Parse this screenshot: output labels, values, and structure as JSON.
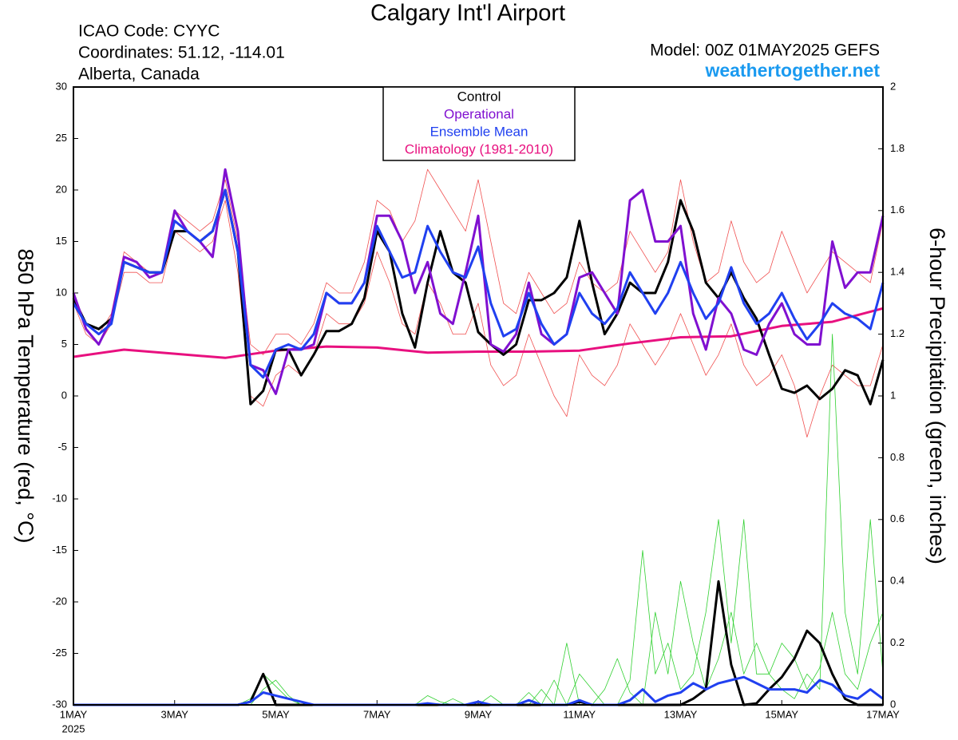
{
  "chart_data": {
    "type": "line",
    "title": "Calgary Int'l Airport",
    "info": [
      "ICAO Code: CYYC",
      "Coordinates: 51.12, -114.01",
      "Alberta, Canada"
    ],
    "model": "Model: 00Z 01MAY2025 GEFS",
    "source": "weathertogether.net",
    "ylabel": "850 hPa Temperature (red, °C)",
    "y2label": "6-hour Precipitation (green, inches)",
    "year": "2025",
    "xlim": [
      0,
      16
    ],
    "xticks": [
      {
        "value": 0,
        "label": "1MAY"
      },
      {
        "value": 2,
        "label": "3MAY"
      },
      {
        "value": 4,
        "label": "5MAY"
      },
      {
        "value": 6,
        "label": "7MAY"
      },
      {
        "value": 8,
        "label": "9MAY"
      },
      {
        "value": 10,
        "label": "11MAY"
      },
      {
        "value": 12,
        "label": "13MAY"
      },
      {
        "value": 14,
        "label": "15MAY"
      },
      {
        "value": 16,
        "label": "17MAY"
      }
    ],
    "ylim": [
      -30,
      30
    ],
    "yticks": [
      -30,
      -25,
      -20,
      -15,
      -10,
      -5,
      0,
      5,
      10,
      15,
      20,
      25,
      30
    ],
    "y2lim": [
      0,
      2
    ],
    "y2ticks": [
      0,
      0.2,
      0.4,
      0.6,
      0.8,
      1,
      1.2,
      1.4,
      1.6,
      1.8,
      2
    ],
    "x": [
      0,
      0.25,
      0.5,
      0.75,
      1,
      1.25,
      1.5,
      1.75,
      2,
      2.25,
      2.5,
      2.75,
      3,
      3.25,
      3.5,
      3.75,
      4,
      4.25,
      4.5,
      4.75,
      5,
      5.25,
      5.5,
      5.75,
      6,
      6.25,
      6.5,
      6.75,
      7,
      7.25,
      7.5,
      7.75,
      8,
      8.25,
      8.5,
      8.75,
      9,
      9.25,
      9.5,
      9.75,
      10,
      10.25,
      10.5,
      10.75,
      11,
      11.25,
      11.5,
      11.75,
      12,
      12.25,
      12.5,
      12.75,
      13,
      13.25,
      13.5,
      13.75,
      14,
      14.25,
      14.5,
      14.75,
      15,
      15.25,
      15.5,
      15.75,
      16
    ],
    "series": [
      {
        "color": "#f05050",
        "values": [
          9,
          7,
          6,
          8,
          14,
          13,
          12,
          12,
          18,
          17,
          16,
          17,
          21,
          15,
          5,
          4,
          6,
          6,
          5,
          7,
          11,
          10,
          10,
          13,
          19,
          18,
          15,
          17,
          22,
          20,
          18,
          16,
          21,
          15,
          9,
          8,
          12,
          10,
          8,
          9,
          13,
          11,
          10,
          11,
          16,
          14,
          12,
          14,
          21,
          15,
          11,
          12,
          17,
          13,
          11,
          12,
          16,
          13,
          10,
          12,
          14,
          13,
          12,
          11,
          17
        ]
      },
      {
        "color": "#f05050",
        "values": [
          9,
          6,
          5,
          7,
          12,
          12,
          11,
          11,
          16,
          15,
          14,
          15,
          19,
          12,
          0,
          -1,
          2,
          3,
          2,
          4,
          8,
          7,
          7,
          9,
          14,
          11,
          7,
          6,
          11,
          9,
          6,
          6,
          9,
          3,
          1,
          2,
          6,
          3,
          0,
          -2,
          4,
          2,
          1,
          3,
          7,
          5,
          3,
          5,
          8,
          5,
          2,
          4,
          7,
          3,
          1,
          2,
          4,
          1,
          -4,
          0,
          3,
          2,
          1,
          1,
          5
        ]
      },
      {
        "color": "#30d030",
        "axis": "y2",
        "values": [
          0,
          0,
          0,
          0,
          0,
          0,
          0,
          0,
          0,
          0,
          0,
          0,
          0,
          0,
          0.02,
          0.1,
          0.06,
          0.02,
          0,
          0,
          0,
          0,
          0,
          0,
          0,
          0,
          0,
          0,
          0.03,
          0.01,
          0,
          0,
          0,
          0,
          0,
          0,
          0.04,
          0,
          0.08,
          0,
          0.1,
          0.05,
          0,
          0,
          0.08,
          0.5,
          0.1,
          0.2,
          0.05,
          0.1,
          0.3,
          0.6,
          0.2,
          0.6,
          0.1,
          0.1,
          0.05,
          0.02,
          0.1,
          0.05,
          1.2,
          0.3,
          0.1,
          0.6,
          0.1
        ]
      },
      {
        "color": "#30d030",
        "axis": "y2",
        "values": [
          0,
          0,
          0,
          0,
          0,
          0,
          0,
          0,
          0,
          0,
          0,
          0,
          0,
          0,
          0,
          0.05,
          0.08,
          0.03,
          0,
          0,
          0,
          0,
          0,
          0,
          0,
          0,
          0,
          0,
          0,
          0,
          0.02,
          0,
          0,
          0.03,
          0,
          0,
          0,
          0.05,
          0,
          0.2,
          0,
          0,
          0.05,
          0.15,
          0.04,
          0,
          0.3,
          0.1,
          0.4,
          0.2,
          0.05,
          0.15,
          0.3,
          0.1,
          0.2,
          0.1,
          0.2,
          0.15,
          0.05,
          0.12,
          0.3,
          0.1,
          0.05,
          0.2,
          0.3
        ]
      },
      {
        "name": "Climatology (1981-2010)",
        "color": "#e8107f",
        "x": [
          0,
          1,
          2,
          3,
          4,
          5,
          6,
          7,
          8,
          9,
          10,
          11,
          12,
          13,
          14,
          15,
          16
        ],
        "values": [
          3.8,
          4.5,
          4.1,
          3.7,
          4.4,
          4.8,
          4.7,
          4.2,
          4.3,
          4.3,
          4.4,
          5.1,
          5.7,
          5.8,
          6.8,
          7.2,
          8.5
        ]
      },
      {
        "name": "Control",
        "color": "#000000",
        "values": [
          9.5,
          7,
          6.5,
          7.5,
          13,
          12.5,
          12,
          12,
          16,
          16,
          15,
          16,
          20,
          14,
          -0.8,
          0.5,
          4.5,
          4.5,
          2,
          4,
          6.3,
          6.3,
          7,
          9.5,
          16,
          14,
          8,
          4.7,
          11,
          16,
          12,
          11,
          6.2,
          5,
          4,
          5,
          9.3,
          9.3,
          10,
          11.5,
          17,
          11,
          6,
          8,
          11,
          10,
          10,
          13,
          19,
          16,
          11,
          9.5,
          12,
          9.5,
          7.5,
          4,
          0.7,
          0.3,
          1,
          -0.3,
          0.7,
          2.5,
          2,
          -0.8,
          3.5
        ]
      },
      {
        "name": "Operational",
        "color": "#8010d0",
        "values": [
          10,
          6.5,
          5,
          7.5,
          13.5,
          13,
          11.5,
          12,
          18,
          16,
          15,
          13.5,
          22,
          16,
          3,
          2.5,
          0.2,
          4.5,
          4.5,
          5,
          10,
          9,
          9,
          11,
          17.5,
          17.5,
          15,
          10,
          13,
          8,
          7,
          12,
          17.5,
          5,
          4.3,
          6,
          11,
          6,
          5,
          6,
          11.5,
          12,
          10,
          8,
          19,
          20,
          15,
          15,
          16.5,
          8,
          4.5,
          9.5,
          8,
          4.5,
          4,
          7,
          9,
          6,
          5,
          5,
          15,
          10.5,
          12,
          12,
          17.5
        ]
      },
      {
        "name": "Ensemble Mean",
        "color": "#2040f0",
        "values": [
          9,
          7,
          6,
          7,
          13,
          12.5,
          12,
          12,
          17,
          16,
          15,
          16,
          20,
          14,
          3,
          1.8,
          4.5,
          5,
          4.5,
          6,
          10,
          9,
          9,
          11,
          16.5,
          14,
          11.5,
          12,
          16.5,
          14,
          12,
          11.5,
          14.5,
          9,
          5.8,
          6.5,
          10,
          7,
          5,
          6,
          10,
          8,
          7,
          8.5,
          12,
          10,
          8,
          10,
          13,
          10,
          7.5,
          9,
          12.5,
          9,
          7,
          8,
          10,
          7.5,
          5.5,
          7,
          9,
          8,
          7.5,
          6.5,
          11
        ]
      },
      {
        "color": "#000000",
        "axis": "y2",
        "values": [
          0,
          0,
          0,
          0,
          0,
          0,
          0,
          0,
          0,
          0,
          0,
          0,
          0,
          0,
          0.01,
          0.1,
          0,
          0,
          0,
          0,
          0,
          0,
          0,
          0,
          0,
          0,
          0,
          0,
          0,
          0,
          0,
          0,
          0,
          0,
          0,
          0,
          0,
          0,
          0,
          0,
          0.01,
          0,
          0,
          0,
          0,
          0,
          0,
          0,
          0,
          0.02,
          0.05,
          0.4,
          0.13,
          0,
          0.005,
          0.05,
          0.09,
          0.15,
          0.24,
          0.2,
          0.1,
          0.02,
          0,
          0,
          0
        ]
      },
      {
        "color": "#2040f0",
        "axis": "y2",
        "values": [
          0,
          0,
          0,
          0,
          0,
          0,
          0,
          0,
          0,
          0,
          0,
          0,
          0,
          0,
          0.01,
          0.04,
          0.03,
          0.02,
          0.01,
          0,
          0,
          0,
          0,
          0,
          0,
          0,
          0,
          0,
          0.005,
          0,
          0,
          0,
          0.01,
          0,
          0,
          0,
          0.015,
          0,
          0,
          0,
          0.015,
          0,
          0,
          0,
          0.015,
          0.05,
          0.01,
          0.03,
          0.04,
          0.07,
          0.05,
          0.07,
          0.08,
          0.09,
          0.07,
          0.05,
          0.05,
          0.05,
          0.04,
          0.08,
          0.065,
          0.03,
          0.02,
          0.05,
          0.02
        ]
      }
    ]
  }
}
